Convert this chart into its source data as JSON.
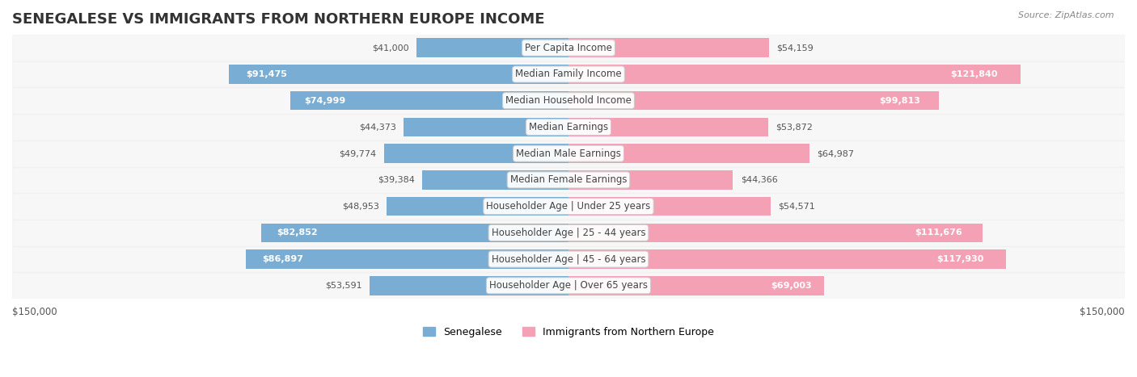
{
  "title": "SENEGALESE VS IMMIGRANTS FROM NORTHERN EUROPE INCOME",
  "source": "Source: ZipAtlas.com",
  "categories": [
    "Per Capita Income",
    "Median Family Income",
    "Median Household Income",
    "Median Earnings",
    "Median Male Earnings",
    "Median Female Earnings",
    "Householder Age | Under 25 years",
    "Householder Age | 25 - 44 years",
    "Householder Age | 45 - 64 years",
    "Householder Age | Over 65 years"
  ],
  "senegalese_values": [
    41000,
    91475,
    74999,
    44373,
    49774,
    39384,
    48953,
    82852,
    86897,
    53591
  ],
  "northern_europe_values": [
    54159,
    121840,
    99813,
    53872,
    64987,
    44366,
    54571,
    111676,
    117930,
    69003
  ],
  "senegalese_labels": [
    "$41,000",
    "$91,475",
    "$74,999",
    "$44,373",
    "$49,774",
    "$39,384",
    "$48,953",
    "$82,852",
    "$86,897",
    "$53,591"
  ],
  "northern_europe_labels": [
    "$54,159",
    "$121,840",
    "$99,813",
    "$53,872",
    "$64,987",
    "$44,366",
    "$54,571",
    "$111,676",
    "$117,930",
    "$69,003"
  ],
  "max_value": 150000,
  "bar_color_senegalese": "#7aadd4",
  "bar_color_northern": "#f4a0b5",
  "bar_color_senegalese_dark": "#5b8fc4",
  "bar_color_northern_dark": "#ef7fa0",
  "bg_row_color": "#f0f0f0",
  "label_bg_color": "#ffffff",
  "axis_label_left": "$150,000",
  "axis_label_right": "$150,000",
  "legend_senegalese": "Senegalese",
  "legend_northern": "Immigrants from Northern Europe",
  "title_fontsize": 13,
  "label_fontsize": 8.5,
  "category_fontsize": 8.5,
  "value_label_fontsize": 8.0
}
